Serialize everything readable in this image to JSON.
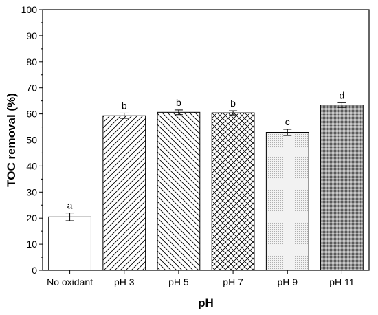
{
  "chart_data": {
    "type": "bar",
    "xlabel": "pH",
    "ylabel": "TOC removal (%)",
    "ylim": [
      0,
      100
    ],
    "yticks": [
      "0",
      "10",
      "20",
      "30",
      "40",
      "50",
      "60",
      "70",
      "80",
      "90",
      "100"
    ],
    "grid": false,
    "categories": [
      "No oxidant",
      "pH 3",
      "pH 5",
      "pH 7",
      "pH 9",
      "pH 11"
    ],
    "values": [
      20.5,
      59.3,
      60.6,
      60.4,
      52.9,
      63.4
    ],
    "errors": [
      1.5,
      1.0,
      0.9,
      0.8,
      1.2,
      0.9
    ],
    "significance_labels": [
      "a",
      "b",
      "b",
      "b",
      "c",
      "d"
    ],
    "fill_patterns": [
      "none",
      "diagonal-forward",
      "diagonal-backward",
      "crosshatch",
      "light-dots",
      "dense-dots"
    ]
  }
}
